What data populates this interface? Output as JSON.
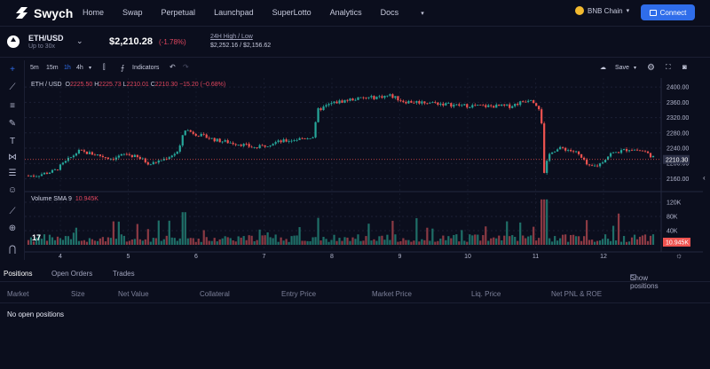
{
  "brand": {
    "name": "Swych"
  },
  "nav": {
    "items": [
      "Home",
      "Swap",
      "Perpetual",
      "Launchpad",
      "SuperLotto",
      "Analytics",
      "Docs"
    ]
  },
  "header": {
    "chain": "BNB Chain",
    "connect_label": "Connect"
  },
  "ticker": {
    "pair": "ETH/USD",
    "leverage": "Up to 30x",
    "price": "$2,210.28",
    "change": "(-1.78%)",
    "hl_label": "24H High / Low",
    "hl_value": "$2,252.16 / $2,156.62"
  },
  "chart_toolbar": {
    "timeframes": [
      "5m",
      "15m",
      "1h",
      "4h"
    ],
    "active_timeframe": "1h",
    "indicators_label": "Indicators",
    "save_label": "Save"
  },
  "legend": {
    "symbol": "ETH / USD",
    "open_key": "O",
    "open": "2225.50",
    "high_key": "H",
    "high": "2225.73",
    "low_key": "L",
    "low": "2210.01",
    "close_key": "C",
    "close": "2210.30",
    "change": "−15.20 (−0.68%)"
  },
  "volume_legend": {
    "label": "Volume SMA 9",
    "value": "10.945K"
  },
  "chart_data": {
    "type": "candlestick",
    "price_axis": {
      "ticks": [
        2160,
        2200,
        2240,
        2280,
        2320,
        2360,
        2400
      ],
      "min": 2140,
      "max": 2405,
      "current": "2210.30"
    },
    "volume_axis": {
      "ticks": [
        "40K",
        "80K",
        "120K"
      ],
      "current": "10.945K",
      "max": 140
    },
    "time_axis": [
      "4",
      "5",
      "6",
      "7",
      "8",
      "9",
      "10",
      "11",
      "12"
    ],
    "colors": {
      "up": "#26a69a",
      "down": "#ef5350"
    },
    "ohlc_hourly": []
  },
  "positions": {
    "tabs": [
      "Positions",
      "Open Orders",
      "Trades"
    ],
    "show_label": "Show positions",
    "columns": [
      "Market",
      "Size",
      "Net Value",
      "Collateral",
      "Entry Price",
      "Market Price",
      "Liq. Price",
      "Net PNL & ROE"
    ],
    "empty_text": "No open positions"
  }
}
